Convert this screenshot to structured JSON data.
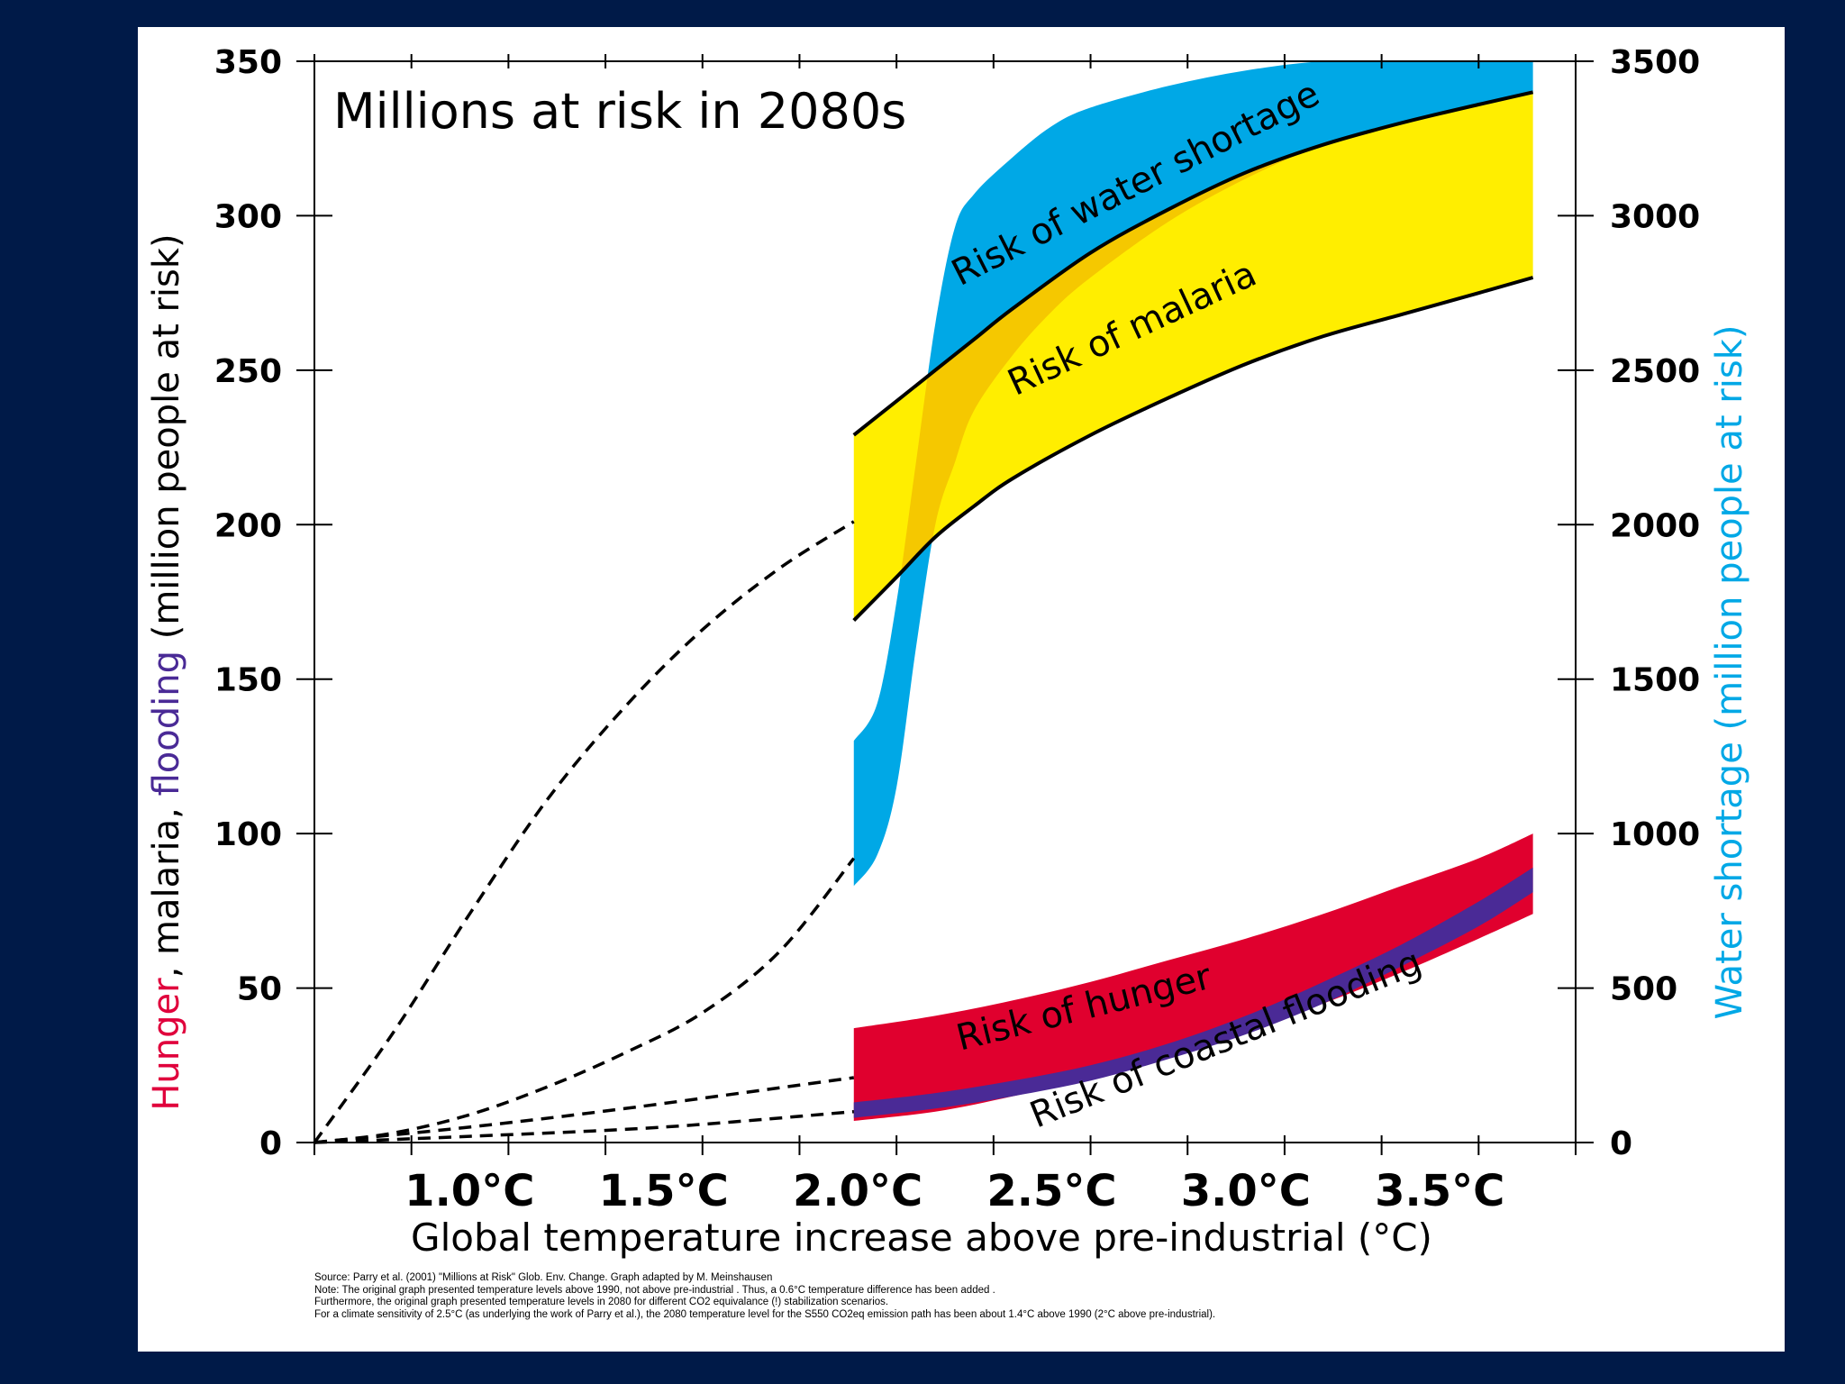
{
  "chart_data": {
    "type": "area",
    "title": "Millions at risk in 2080s",
    "xlabel": "Global temperature increase above pre-industrial (°C)",
    "xlim": [
      0.6,
      3.85
    ],
    "ylabel_left_parts": [
      {
        "text": "Hunger",
        "color": "#e0003c"
      },
      {
        "text": ", malaria, ",
        "color": "#000000"
      },
      {
        "text": "flooding",
        "color": "#4a2a96"
      },
      {
        "text": " (million people at risk)",
        "color": "#000000"
      }
    ],
    "ylim_left": [
      0,
      350
    ],
    "yticks_left": [
      0,
      50,
      100,
      150,
      200,
      250,
      300,
      350
    ],
    "ylabel_right": "Water shortage (million people at risk)",
    "ylabel_right_color": "#00a8e6",
    "ylim_right": [
      0,
      3500
    ],
    "yticks_right": [
      0,
      500,
      1000,
      1500,
      2000,
      2500,
      3000,
      3500
    ],
    "xticks": [
      0.6,
      0.85,
      1.1,
      1.35,
      1.6,
      1.85,
      2.1,
      2.35,
      2.6,
      2.85,
      3.1,
      3.35,
      3.6,
      3.85
    ],
    "xtick_labels": [
      {
        "x": 1.0,
        "label": "1.0°C"
      },
      {
        "x": 1.5,
        "label": "1.5°C"
      },
      {
        "x": 2.0,
        "label": "2.0°C"
      },
      {
        "x": 2.5,
        "label": "2.5°C"
      },
      {
        "x": 3.0,
        "label": "3.0°C"
      },
      {
        "x": 3.5,
        "label": "3.5°C"
      }
    ],
    "series": [
      {
        "name": "Risk of water shortage",
        "axis": "right",
        "color": "#00a8e6",
        "x": [
          1.99,
          2.05,
          2.1,
          2.15,
          2.2,
          2.25,
          2.3,
          2.4,
          2.5,
          2.6,
          2.8,
          3.0,
          3.2,
          3.4,
          3.6,
          3.74
        ],
        "upper": [
          1300,
          1420,
          1750,
          2200,
          2650,
          2960,
          3070,
          3190,
          3290,
          3350,
          3420,
          3470,
          3500,
          3500,
          3500,
          3500
        ],
        "lower": [
          830,
          930,
          1150,
          1600,
          2000,
          2200,
          2370,
          2550,
          2690,
          2800,
          2980,
          3120,
          3230,
          3300,
          3360,
          3400
        ]
      },
      {
        "name": "Risk of malaria",
        "axis": "left",
        "color": "#ffee00",
        "overlap_color": "#f5c800",
        "x": [
          1.99,
          2.1,
          2.2,
          2.3,
          2.4,
          2.6,
          2.8,
          3.0,
          3.2,
          3.4,
          3.6,
          3.74
        ],
        "upper": [
          229,
          240,
          250,
          260,
          270,
          288,
          302,
          314,
          323,
          330,
          336,
          340
        ],
        "lower": [
          169,
          183,
          196,
          206,
          215,
          229,
          241,
          252,
          261,
          268,
          275,
          280
        ]
      },
      {
        "name": "Risk of hunger",
        "axis": "left",
        "color": "#e0002e",
        "x": [
          1.99,
          2.2,
          2.4,
          2.6,
          2.8,
          3.0,
          3.2,
          3.4,
          3.6,
          3.74
        ],
        "upper": [
          37,
          41,
          46,
          52,
          59,
          66,
          74,
          83,
          92,
          100
        ],
        "lower": [
          7,
          10,
          15,
          21,
          28,
          36,
          45,
          55,
          66,
          74
        ]
      },
      {
        "name": "Risk of coastal flooding",
        "axis": "left",
        "color": "#4a2a96",
        "x": [
          1.99,
          2.2,
          2.4,
          2.6,
          2.8,
          3.0,
          3.2,
          3.4,
          3.6,
          3.74
        ],
        "upper": [
          13,
          16,
          20,
          25,
          32,
          41,
          52,
          64,
          78,
          89
        ],
        "lower": [
          8,
          11,
          15,
          20,
          27,
          35,
          45,
          57,
          70,
          81
        ]
      }
    ],
    "dashed_extrapolations": [
      {
        "name": "water-shortage-upper",
        "axis": "left",
        "x": [
          0.6,
          0.8,
          1.0,
          1.2,
          1.4,
          1.6,
          1.8,
          1.99
        ],
        "y": [
          0,
          35,
          74,
          111,
          141,
          166,
          186,
          201
        ]
      },
      {
        "name": "water-shortage-lower",
        "axis": "left",
        "x": [
          0.6,
          0.8,
          1.0,
          1.2,
          1.4,
          1.6,
          1.8,
          1.99
        ],
        "y": [
          0,
          3,
          9,
          18,
          29,
          42,
          62,
          92
        ]
      },
      {
        "name": "hunger-upper",
        "axis": "left",
        "x": [
          0.6,
          1.0,
          1.4,
          1.99
        ],
        "y": [
          0,
          5,
          11,
          21
        ]
      },
      {
        "name": "flooding-lower",
        "axis": "left",
        "x": [
          0.6,
          1.0,
          1.5,
          1.99
        ],
        "y": [
          0,
          2,
          5,
          10
        ]
      }
    ],
    "band_labels": [
      {
        "text": "Risk of water shortage",
        "x": 2.73,
        "y": 307,
        "angle": -27
      },
      {
        "text": "Risk of malaria",
        "x": 2.72,
        "y": 260,
        "angle": -25
      },
      {
        "text": "Risk of hunger",
        "x": 2.59,
        "y": 40,
        "angle": -14
      },
      {
        "text": "Risk of coastal flooding",
        "x": 2.96,
        "y": 30,
        "angle": -22
      }
    ]
  },
  "source_notes": [
    "Source: Parry et al. (2001) \"Millions at Risk\" Glob. Env. Change.  Graph adapted by M. Meinshausen",
    "Note: The original graph presented temperature levels above 1990, not above pre-industrial . Thus, a 0.6°C temperature difference has been added .",
    "Furthermore, the original graph presented temperature levels in 2080 for different CO2 equivalance (!) stabilization scenarios.",
    "For a climate sensitivity of 2.5°C (as underlying the work of Parry et al.), the 2080 temperature level for the S550 CO2eq emission path has been about 1.4°C above 1990 (2°C above pre-industrial)."
  ]
}
